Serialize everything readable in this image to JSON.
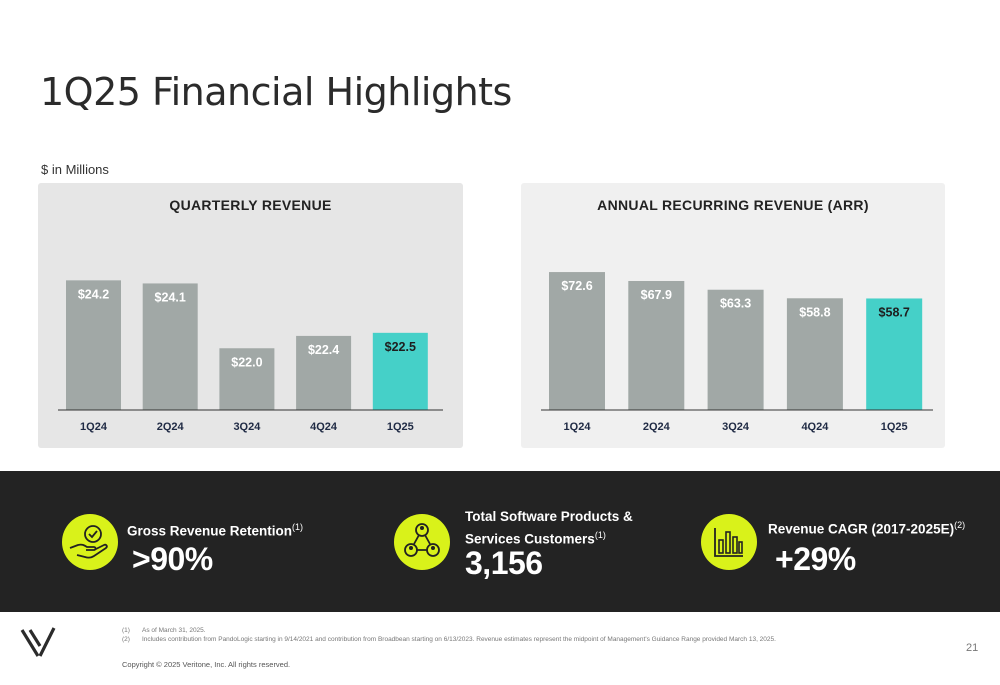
{
  "page_title": "1Q25 Financial Highlights",
  "units_note": "$ in Millions",
  "colors": {
    "bar": "#a1a8a6",
    "highlight": "#45d0c8",
    "band": "#232323",
    "accent": "#d9f21a",
    "panel_left": "#e6e6e6",
    "panel_right": "#f0f0f0"
  },
  "chart_data": [
    {
      "type": "bar",
      "title": "QUARTERLY REVENUE",
      "categories": [
        "1Q24",
        "2Q24",
        "3Q24",
        "4Q24",
        "1Q25"
      ],
      "values": [
        24.2,
        24.1,
        22.0,
        22.4,
        22.5
      ],
      "data_labels": [
        "$24.2",
        "$24.1",
        "$22.0",
        "$22.4",
        "$22.5"
      ],
      "highlight_index": 4,
      "ylim": [
        20.0,
        24.6
      ]
    },
    {
      "type": "bar",
      "title": "ANNUAL RECURRING REVENUE (ARR)",
      "categories": [
        "1Q24",
        "2Q24",
        "3Q24",
        "4Q24",
        "1Q25"
      ],
      "values": [
        72.6,
        67.9,
        63.3,
        58.8,
        58.7
      ],
      "data_labels": [
        "$72.6",
        "$67.9",
        "$63.3",
        "$58.8",
        "$58.7"
      ],
      "highlight_index": 4,
      "ylim": [
        0,
        80
      ]
    }
  ],
  "metrics": [
    {
      "label": "Gross Revenue Retention",
      "sup": "(1)",
      "value": ">90%",
      "icon": "hand-check-badge-icon"
    },
    {
      "label_line1": "Total Software Products &",
      "label_line2": "Services Customers",
      "sup": "(1)",
      "value": "3,156",
      "icon": "customers-network-icon"
    },
    {
      "label": "Revenue CAGR (2017-2025E)",
      "sup": "(2)",
      "value": "+29%",
      "icon": "bar-chart-icon"
    }
  ],
  "footnotes": [
    {
      "num": "(1)",
      "text": "As of March 31, 2025."
    },
    {
      "num": "(2)",
      "text": "Includes contribution from PandoLogic starting in 9/14/2021 and contribution from Broadbean starting on 6/13/2023. Revenue estimates represent the midpoint of Management's Guidance Range provided March 13, 2025."
    }
  ],
  "copyright": "Copyright © 2025 Veritone, Inc. All rights reserved.",
  "page_number": "21",
  "logo": "veritone-v-logo"
}
